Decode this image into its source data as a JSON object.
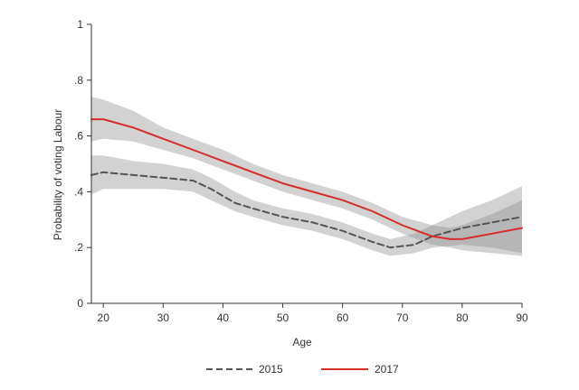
{
  "chart_data": {
    "type": "line",
    "title": "",
    "xlabel": "Age",
    "ylabel": "Probability of voting Labour",
    "xlim": [
      18,
      90
    ],
    "ylim": [
      0,
      1
    ],
    "x_ticks": [
      20,
      30,
      40,
      50,
      60,
      70,
      80,
      90
    ],
    "x_tick_labels": [
      "20",
      "30",
      "40",
      "50",
      "60",
      "70",
      "80",
      "90"
    ],
    "y_ticks": [
      0,
      0.2,
      0.4,
      0.6,
      0.8,
      1
    ],
    "y_tick_labels": [
      "0",
      ".2",
      ".4",
      ".6",
      ".8",
      "1"
    ],
    "grid": false,
    "legend_position": "bottom",
    "series": [
      {
        "name": "2015",
        "color": "#555555",
        "dash": "dashed",
        "x": [
          18,
          20,
          25,
          30,
          35,
          38,
          42,
          45,
          50,
          55,
          60,
          65,
          68,
          72,
          75,
          80,
          85,
          90
        ],
        "values": [
          0.46,
          0.47,
          0.46,
          0.45,
          0.44,
          0.41,
          0.36,
          0.34,
          0.31,
          0.29,
          0.26,
          0.22,
          0.2,
          0.21,
          0.24,
          0.27,
          0.29,
          0.31
        ],
        "ci_lower": [
          0.39,
          0.41,
          0.41,
          0.41,
          0.4,
          0.37,
          0.33,
          0.31,
          0.28,
          0.26,
          0.23,
          0.19,
          0.17,
          0.18,
          0.2,
          0.21,
          0.2,
          0.18
        ],
        "ci_upper": [
          0.53,
          0.53,
          0.51,
          0.5,
          0.48,
          0.45,
          0.4,
          0.37,
          0.34,
          0.32,
          0.29,
          0.25,
          0.23,
          0.25,
          0.28,
          0.33,
          0.37,
          0.42
        ]
      },
      {
        "name": "2017",
        "color": "#d62c2c",
        "dash": "solid",
        "x": [
          18,
          20,
          25,
          30,
          35,
          40,
          45,
          50,
          55,
          60,
          65,
          70,
          75,
          78,
          80,
          85,
          90
        ],
        "values": [
          0.66,
          0.66,
          0.63,
          0.59,
          0.55,
          0.51,
          0.47,
          0.43,
          0.4,
          0.37,
          0.33,
          0.28,
          0.24,
          0.23,
          0.23,
          0.25,
          0.27
        ],
        "ci_lower": [
          0.58,
          0.59,
          0.58,
          0.55,
          0.52,
          0.48,
          0.44,
          0.4,
          0.37,
          0.34,
          0.3,
          0.25,
          0.21,
          0.2,
          0.19,
          0.18,
          0.17
        ],
        "ci_upper": [
          0.74,
          0.73,
          0.69,
          0.63,
          0.59,
          0.55,
          0.5,
          0.46,
          0.43,
          0.4,
          0.36,
          0.31,
          0.28,
          0.27,
          0.28,
          0.32,
          0.37
        ]
      }
    ]
  }
}
